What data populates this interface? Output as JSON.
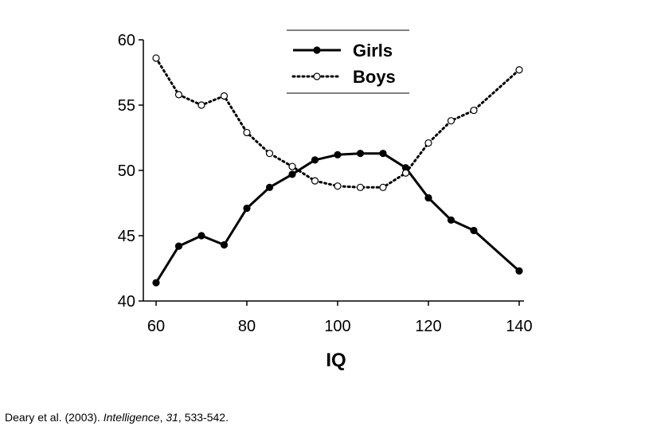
{
  "chart_data": {
    "type": "line",
    "x": [
      60,
      65,
      70,
      75,
      80,
      85,
      90,
      95,
      100,
      105,
      110,
      115,
      120,
      125,
      130,
      140
    ],
    "series": [
      {
        "name": "Girls",
        "style": "solid",
        "marker": "filled-circle",
        "values": [
          41.4,
          44.2,
          45.0,
          44.3,
          47.1,
          48.7,
          49.7,
          50.8,
          51.2,
          51.3,
          51.3,
          50.2,
          47.9,
          46.2,
          45.4,
          42.3
        ]
      },
      {
        "name": "Boys",
        "style": "dotted",
        "marker": "open-circle",
        "values": [
          58.6,
          55.8,
          55.0,
          55.7,
          52.9,
          51.3,
          50.3,
          49.2,
          48.8,
          48.7,
          48.7,
          49.8,
          52.1,
          53.8,
          54.6,
          57.7
        ]
      }
    ],
    "xlabel": "IQ",
    "ylabel": "",
    "xlim": [
      60,
      140
    ],
    "ylim": [
      40,
      60
    ],
    "xticks": [
      "60",
      "80",
      "100",
      "120",
      "140"
    ],
    "yticks": [
      "40",
      "45",
      "50",
      "55",
      "60"
    ],
    "grid": false,
    "legend_position": "top-center"
  },
  "citation": {
    "authors": "Deary et al. (2003). ",
    "journal": "Intelligence",
    "sep": ", ",
    "volume": "31",
    "pages": ", 533-542."
  },
  "colors": {
    "line": "#000000",
    "background": "#ffffff"
  }
}
